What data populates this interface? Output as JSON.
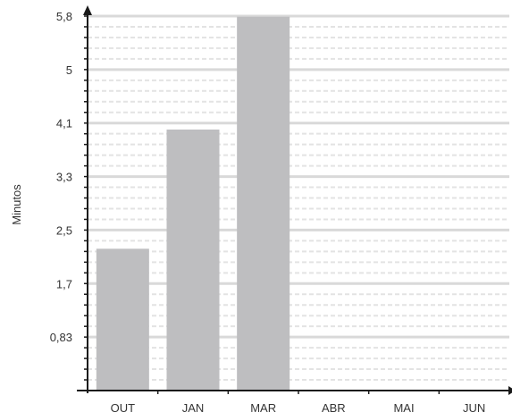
{
  "chart_data": {
    "type": "bar",
    "categories": [
      "OUT",
      "JAN",
      "MAR",
      "ABR",
      "MAI",
      "JUN"
    ],
    "values": [
      2.2,
      4.05,
      5.8,
      null,
      null,
      null
    ],
    "ylabel": "Minutos",
    "yticks": [
      "0,83",
      "1,7",
      "2,5",
      "3,3",
      "4,1",
      "5",
      "5,8"
    ],
    "ytick_values": [
      0.83,
      1.66,
      2.49,
      3.32,
      4.15,
      4.98,
      5.81
    ],
    "ylim": [
      0,
      5.81
    ],
    "grid": true,
    "colors": {
      "bar": "#bebec0",
      "grid_major": "#d9d9d9",
      "grid_minor": "#e3e3e3",
      "axis": "#1a1a1a"
    }
  }
}
